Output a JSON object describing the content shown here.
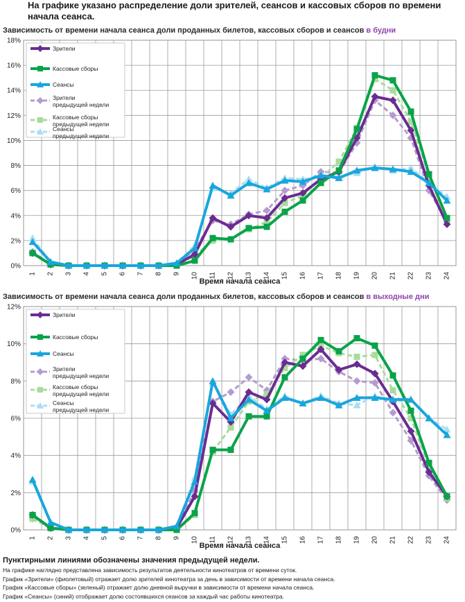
{
  "header": {
    "title": "На графике указано распределение доли зрителей, сеансов и кассовых сборов по времени начала сеанса."
  },
  "colors": {
    "viewers": "#6a2c91",
    "box_office": "#0aa34a",
    "sessions": "#19a6dc",
    "viewers_prev": "#b59bd0",
    "box_office_prev": "#a8dc9c",
    "sessions_prev": "#a9def2",
    "highlight": "#8e44ad"
  },
  "chart_data": [
    {
      "type": "line",
      "title_prefix": "Зависимость от времени начала сеанса доли проданных билетов, кассовых сборов и сеансов ",
      "title_highlight": "в будни",
      "xlabel": "Время начала сеанса",
      "ylabel": "",
      "categories": [
        "1",
        "2",
        "3",
        "4",
        "5",
        "6",
        "7",
        "8",
        "9",
        "10",
        "11",
        "12",
        "13",
        "14",
        "15",
        "16",
        "17",
        "18",
        "19",
        "20",
        "21",
        "22",
        "23",
        "24"
      ],
      "ylim": [
        0,
        18
      ],
      "yticks": [
        "0%",
        "2%",
        "4%",
        "6%",
        "8%",
        "10%",
        "12%",
        "14%",
        "16%",
        "18%"
      ],
      "grid": true,
      "legend_position": "top-left",
      "series": [
        {
          "name": "Зрители",
          "key": "viewers",
          "style": "solid",
          "marker": "diamond",
          "values": [
            1.0,
            0.1,
            0.0,
            0.0,
            0.0,
            0.0,
            0.0,
            0.0,
            0.1,
            0.9,
            3.8,
            3.1,
            4.0,
            3.8,
            5.4,
            5.8,
            6.9,
            7.5,
            10.2,
            13.5,
            13.2,
            10.8,
            6.4,
            3.3
          ]
        },
        {
          "name": "Кассовые сборы",
          "key": "box_office",
          "style": "solid",
          "marker": "square",
          "values": [
            1.0,
            0.1,
            0.0,
            0.0,
            0.0,
            0.0,
            0.0,
            0.0,
            0.0,
            0.4,
            2.2,
            2.1,
            3.0,
            3.1,
            4.3,
            5.2,
            6.6,
            7.6,
            10.9,
            15.2,
            14.8,
            12.3,
            7.3,
            3.8
          ]
        },
        {
          "name": "Сеансы",
          "key": "sessions",
          "style": "solid",
          "marker": "triangle",
          "values": [
            1.9,
            0.3,
            0.0,
            0.0,
            0.0,
            0.0,
            0.0,
            0.0,
            0.2,
            1.4,
            6.4,
            5.6,
            6.6,
            6.1,
            6.8,
            6.7,
            7.2,
            7.0,
            7.6,
            7.8,
            7.7,
            7.5,
            6.6,
            5.2
          ]
        },
        {
          "name": "Зрители предыдущей недели",
          "key": "viewers_prev",
          "style": "dashed",
          "marker": "diamond",
          "values": [
            1.1,
            0.1,
            0.0,
            0.0,
            0.0,
            0.0,
            0.0,
            0.0,
            0.1,
            1.3,
            3.6,
            3.3,
            4.1,
            4.4,
            6.0,
            6.4,
            7.5,
            7.4,
            9.8,
            13.2,
            12.0,
            10.2,
            6.0,
            3.5
          ]
        },
        {
          "name": "Кассовые сборы предыдущей недели",
          "key": "box_office_prev",
          "style": "dashed",
          "marker": "square",
          "values": [
            1.0,
            0.1,
            0.0,
            0.0,
            0.0,
            0.0,
            0.0,
            0.0,
            0.0,
            0.8,
            2.0,
            2.1,
            2.9,
            3.5,
            5.0,
            5.6,
            7.0,
            8.3,
            11.0,
            14.9,
            14.0,
            11.5,
            7.2,
            3.7
          ]
        },
        {
          "name": "Сеансы предыдущей недели",
          "key": "sessions_prev",
          "style": "dashed",
          "marker": "triangle",
          "values": [
            2.2,
            0.3,
            0.0,
            0.0,
            0.0,
            0.0,
            0.0,
            0.0,
            0.2,
            1.6,
            6.2,
            5.8,
            6.9,
            6.2,
            7.0,
            6.9,
            7.1,
            7.1,
            7.4,
            7.9,
            7.6,
            7.8,
            6.6,
            5.5
          ]
        }
      ]
    },
    {
      "type": "line",
      "title_prefix": "Зависимость от времени начала сеанса доли проданных билетов, кассовых сборов и сеансов ",
      "title_highlight": "в выходные дни",
      "xlabel": "Время начала сеанса",
      "ylabel": "",
      "categories": [
        "1",
        "2",
        "3",
        "4",
        "5",
        "6",
        "7",
        "8",
        "9",
        "10",
        "11",
        "12",
        "13",
        "14",
        "15",
        "16",
        "17",
        "18",
        "19",
        "20",
        "21",
        "22",
        "23",
        "24"
      ],
      "ylim": [
        0,
        12
      ],
      "yticks": [
        "0%",
        "2%",
        "4%",
        "6%",
        "8%",
        "10%",
        "12%"
      ],
      "grid": true,
      "legend_position": "top-left",
      "series": [
        {
          "name": "Зрители",
          "key": "viewers",
          "style": "solid",
          "marker": "diamond",
          "values": [
            0.8,
            0.1,
            0.0,
            0.0,
            0.0,
            0.0,
            0.0,
            0.0,
            0.1,
            1.8,
            6.8,
            5.8,
            7.4,
            7.0,
            9.0,
            8.8,
            9.7,
            8.6,
            8.9,
            8.4,
            6.9,
            5.3,
            3.1,
            1.8
          ]
        },
        {
          "name": "Кассовые сборы",
          "key": "box_office",
          "style": "solid",
          "marker": "square",
          "values": [
            0.8,
            0.1,
            0.0,
            0.0,
            0.0,
            0.0,
            0.0,
            0.0,
            0.0,
            0.9,
            4.3,
            4.3,
            6.1,
            6.1,
            8.2,
            9.2,
            10.2,
            9.6,
            10.3,
            9.9,
            8.3,
            6.4,
            3.6,
            1.8
          ]
        },
        {
          "name": "Сеансы",
          "key": "sessions",
          "style": "solid",
          "marker": "triangle",
          "values": [
            2.7,
            0.4,
            0.0,
            0.0,
            0.0,
            0.0,
            0.0,
            0.0,
            0.2,
            2.6,
            8.0,
            6.0,
            7.0,
            6.4,
            7.1,
            6.8,
            7.1,
            6.7,
            7.1,
            7.1,
            7.0,
            7.0,
            6.0,
            5.1
          ]
        },
        {
          "name": "Зрители предыдущей недели",
          "key": "viewers_prev",
          "style": "dashed",
          "marker": "diamond",
          "values": [
            0.6,
            0.1,
            0.0,
            0.0,
            0.0,
            0.0,
            0.0,
            0.0,
            0.1,
            2.1,
            6.9,
            7.4,
            8.2,
            7.5,
            9.2,
            9.1,
            9.2,
            8.5,
            8.0,
            7.9,
            6.3,
            4.8,
            2.9,
            1.6
          ]
        },
        {
          "name": "Кассовые сборы предыдущей недели",
          "key": "box_office_prev",
          "style": "dashed",
          "marker": "square",
          "values": [
            0.6,
            0.1,
            0.0,
            0.0,
            0.0,
            0.0,
            0.0,
            0.0,
            0.0,
            0.8,
            4.2,
            5.5,
            6.9,
            7.3,
            8.7,
            9.4,
            9.9,
            9.5,
            9.3,
            9.4,
            7.5,
            6.0,
            3.4,
            1.7
          ]
        },
        {
          "name": "Сеансы предыдущей недели",
          "key": "sessions_prev",
          "style": "dashed",
          "marker": "triangle",
          "values": [
            2.6,
            0.4,
            0.0,
            0.0,
            0.0,
            0.0,
            0.0,
            0.0,
            0.2,
            2.8,
            7.9,
            6.2,
            7.2,
            6.5,
            7.2,
            6.8,
            7.2,
            6.8,
            6.7,
            7.2,
            6.9,
            7.0,
            6.0,
            5.4
          ]
        }
      ]
    }
  ],
  "footer": {
    "bold": "Пунктирными линиями обозначены значения предыдущей недели.",
    "lines": [
      "На графике наглядно представлена зависимость результатов деятельности кинотеатров от времени суток.",
      "График «Зрители» (фиолетовый)  отражает долю зрителей кинотеатра за день в зависимости от времени  начала сеанса.",
      "График «Кассовые сборы» (зеленый) отражает долю дневной выручки в зависимости от времени начала сеанса.",
      "График «Сеансы» (синий) отображает долю состоявшихся сеансов  за каждый час работы кинотеатра."
    ]
  }
}
